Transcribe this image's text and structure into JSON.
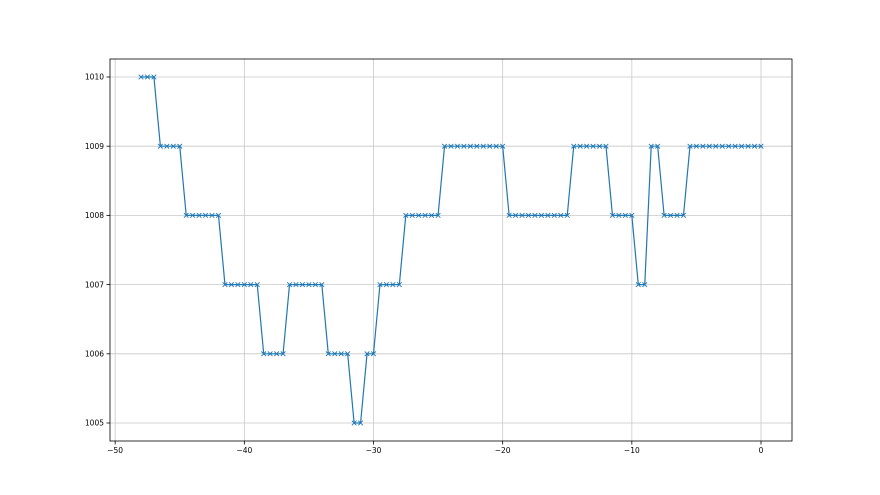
{
  "chart_data": {
    "type": "line",
    "title": "",
    "xlabel": "",
    "ylabel": "",
    "xlim": [
      -50.4,
      2.4
    ],
    "ylim": [
      1004.74,
      1010.26
    ],
    "x_ticks": [
      -50,
      -40,
      -30,
      -20,
      -10,
      0
    ],
    "y_ticks": [
      1005,
      1006,
      1007,
      1008,
      1009,
      1010
    ],
    "grid": true,
    "marker": "x",
    "line_color": "#1f77b4",
    "x": [
      -48,
      -47.5,
      -47,
      -46.5,
      -46,
      -45.5,
      -45,
      -44.5,
      -44,
      -43.5,
      -43,
      -42.5,
      -42,
      -41.5,
      -41,
      -40.5,
      -40,
      -39.5,
      -39,
      -38.5,
      -38,
      -37.5,
      -37,
      -36.5,
      -36,
      -35.5,
      -35,
      -34.5,
      -34,
      -33.5,
      -33,
      -32.5,
      -32,
      -31.5,
      -31,
      -30.5,
      -30,
      -29.5,
      -29,
      -28.5,
      -28,
      -27.5,
      -27,
      -26.5,
      -26,
      -25.5,
      -25,
      -24.5,
      -24,
      -23.5,
      -23,
      -22.5,
      -22,
      -21.5,
      -21,
      -20.5,
      -20,
      -19.5,
      -19,
      -18.5,
      -18,
      -17.5,
      -17,
      -16.5,
      -16,
      -15.5,
      -15,
      -14.5,
      -14,
      -13.5,
      -13,
      -12.5,
      -12,
      -11.5,
      -11,
      -10.5,
      -10,
      -9.5,
      -9,
      -8.5,
      -8,
      -7.5,
      -7,
      -6.5,
      -6,
      -5.5,
      -5,
      -4.5,
      -4,
      -3.5,
      -3,
      -2.5,
      -2,
      -1.5,
      -1,
      -0.5,
      0
    ],
    "y": [
      1010,
      1010,
      1010,
      1009,
      1009,
      1009,
      1009,
      1008,
      1008,
      1008,
      1008,
      1008,
      1008,
      1007,
      1007,
      1007,
      1007,
      1007,
      1007,
      1006,
      1006,
      1006,
      1006,
      1007,
      1007,
      1007,
      1007,
      1007,
      1007,
      1006,
      1006,
      1006,
      1006,
      1005,
      1005,
      1006,
      1006,
      1007,
      1007,
      1007,
      1007,
      1008,
      1008,
      1008,
      1008,
      1008,
      1008,
      1009,
      1009,
      1009,
      1009,
      1009,
      1009,
      1009,
      1009,
      1009,
      1009,
      1008,
      1008,
      1008,
      1008,
      1008,
      1008,
      1008,
      1008,
      1008,
      1008,
      1009,
      1009,
      1009,
      1009,
      1009,
      1009,
      1008,
      1008,
      1008,
      1008,
      1007,
      1007,
      1009,
      1009,
      1008,
      1008,
      1008,
      1008,
      1009,
      1009,
      1009,
      1009,
      1009,
      1009,
      1009,
      1009,
      1009,
      1009,
      1009,
      1009
    ]
  }
}
